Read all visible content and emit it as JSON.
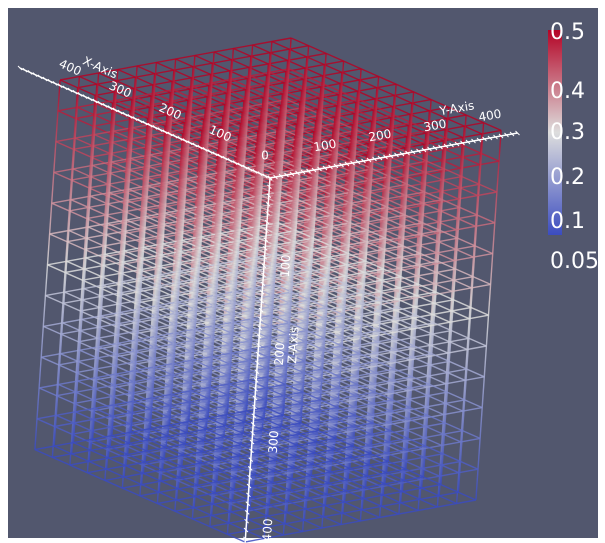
{
  "axes": {
    "x": {
      "title": "X-Axis",
      "ticks": [
        100,
        200,
        300,
        400
      ]
    },
    "y": {
      "title": "Y-Axis",
      "ticks": [
        100,
        200,
        300,
        400
      ]
    },
    "z": {
      "title": "Z-Axis",
      "ticks": [
        100,
        200,
        300,
        400
      ]
    },
    "origin": 0
  },
  "colorbar": {
    "labels": [
      0.5,
      0.4,
      0.3,
      0.2,
      0.1,
      0.05
    ]
  }
}
